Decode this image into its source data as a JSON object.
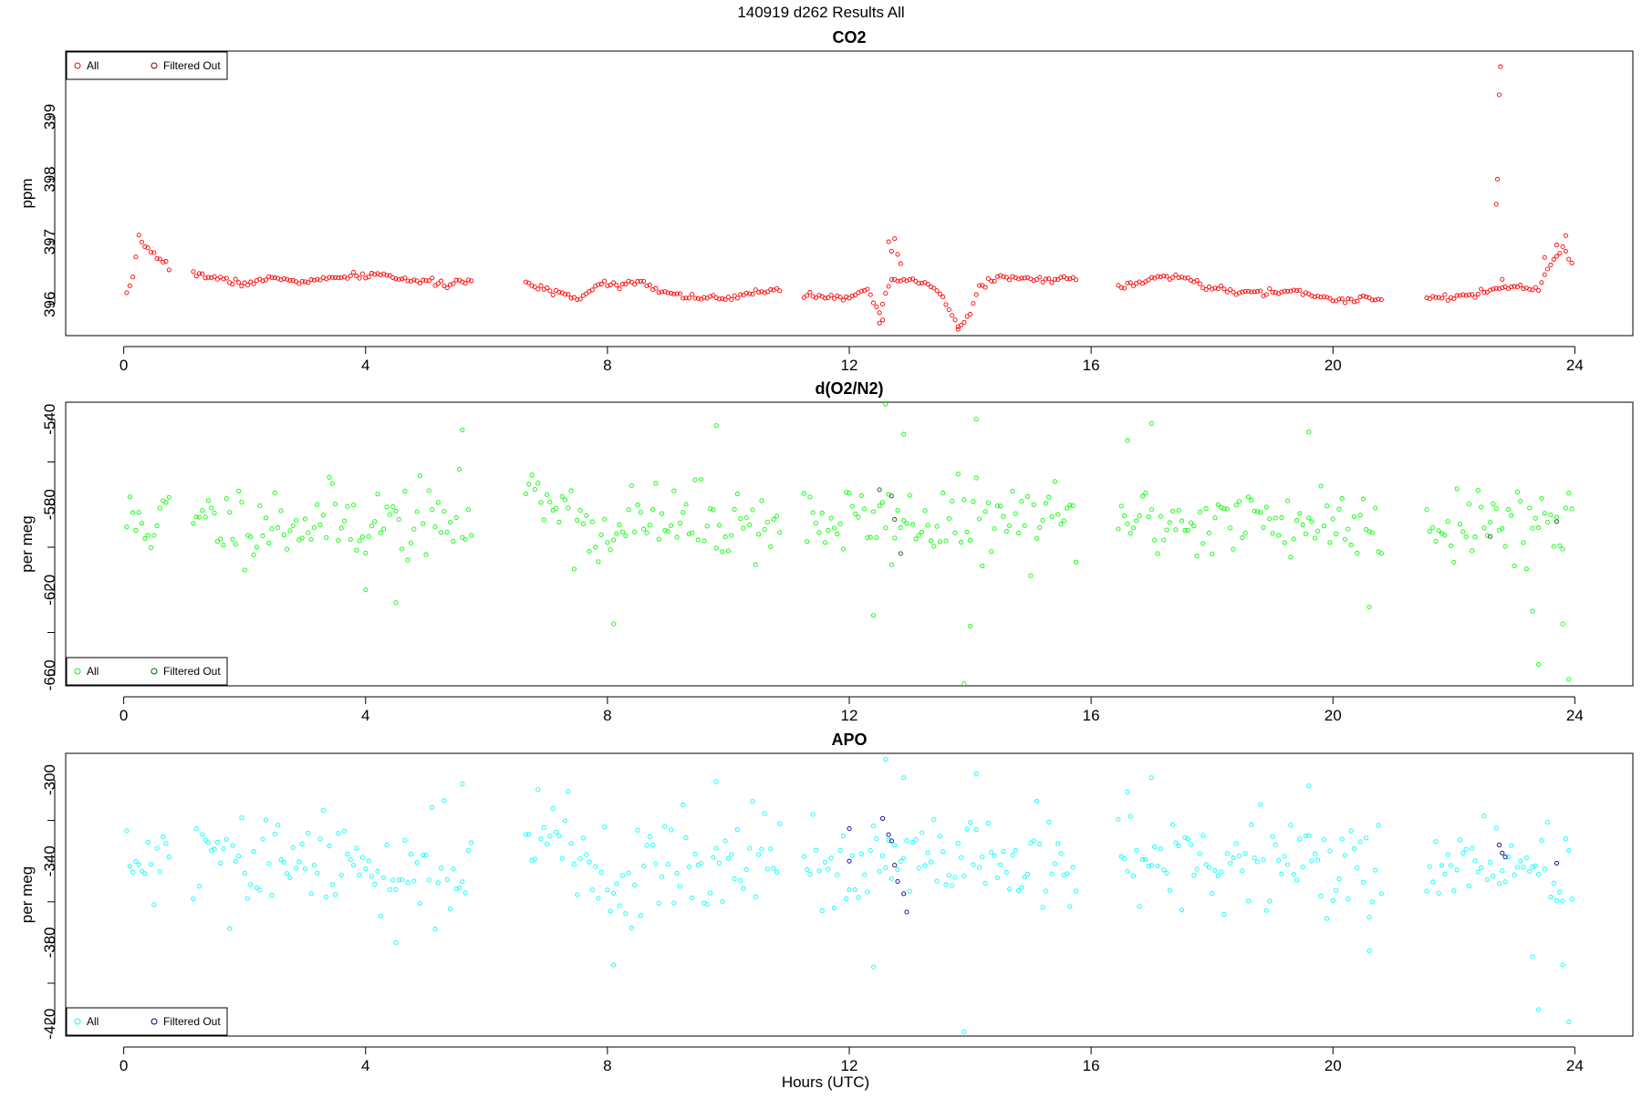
{
  "figure": {
    "title": "140919   d262   Results All",
    "xlabel": "Hours (UTC)"
  },
  "chart_data": [
    {
      "type": "scatter",
      "title": "CO2",
      "ylabel": "ppm",
      "xlim": [
        -0.96,
        24.96
      ],
      "ylim": [
        395.5,
        400.05
      ],
      "x_ticks": [
        0,
        4,
        8,
        12,
        16,
        20,
        24
      ],
      "y_ticks": [
        396,
        397,
        398,
        399
      ],
      "legend_position": "top-left",
      "series": [
        {
          "name": "All",
          "color": "#ff0000",
          "profile": [
            [
              0.05,
              396.15
            ],
            [
              0.15,
              396.4
            ],
            [
              0.25,
              397.05
            ],
            [
              0.45,
              396.85
            ],
            [
              0.75,
              396.6
            ],
            [
              1.15,
              396.5
            ],
            [
              1.6,
              396.4
            ],
            [
              2.0,
              396.33
            ],
            [
              2.5,
              396.42
            ],
            [
              3.0,
              396.36
            ],
            [
              3.5,
              396.42
            ],
            [
              4.2,
              396.48
            ],
            [
              4.8,
              396.38
            ],
            [
              5.3,
              396.32
            ],
            [
              5.75,
              396.38
            ],
            [
              6.7,
              396.3
            ],
            [
              7.2,
              396.2
            ],
            [
              7.5,
              396.08
            ],
            [
              7.9,
              396.35
            ],
            [
              8.2,
              396.3
            ],
            [
              8.5,
              396.4
            ],
            [
              8.9,
              396.2
            ],
            [
              9.4,
              396.12
            ],
            [
              10.0,
              396.08
            ],
            [
              10.6,
              396.22
            ],
            [
              10.8,
              396.25
            ],
            [
              11.3,
              396.15
            ],
            [
              11.9,
              396.12
            ],
            [
              12.3,
              396.2
            ],
            [
              12.5,
              395.85
            ],
            [
              12.7,
              396.4
            ],
            [
              13.2,
              396.35
            ],
            [
              13.5,
              396.2
            ],
            [
              13.8,
              395.62
            ],
            [
              14.0,
              395.85
            ],
            [
              14.15,
              396.3
            ],
            [
              14.5,
              396.45
            ],
            [
              15.0,
              396.38
            ],
            [
              15.4,
              396.42
            ],
            [
              15.75,
              396.4
            ],
            [
              16.5,
              396.28
            ],
            [
              17.0,
              396.4
            ],
            [
              17.5,
              396.45
            ],
            [
              17.9,
              396.28
            ],
            [
              18.3,
              396.2
            ],
            [
              18.8,
              396.18
            ],
            [
              19.3,
              396.22
            ],
            [
              19.8,
              396.12
            ],
            [
              20.2,
              396.05
            ],
            [
              20.5,
              396.12
            ],
            [
              20.8,
              396.08
            ],
            [
              21.6,
              396.12
            ],
            [
              22.0,
              396.12
            ],
            [
              22.4,
              396.15
            ],
            [
              22.7,
              396.25
            ],
            [
              23.1,
              396.28
            ],
            [
              23.4,
              396.22
            ],
            [
              23.6,
              396.65
            ],
            [
              23.8,
              396.9
            ],
            [
              23.95,
              396.65
            ]
          ],
          "gaps": [
            [
              0.8,
              1.1
            ],
            [
              5.8,
              6.6
            ],
            [
              10.9,
              11.2
            ],
            [
              15.8,
              16.4
            ],
            [
              20.85,
              21.5
            ]
          ],
          "spread": 0.05,
          "outliers": [
            [
              12.5,
              395.7
            ],
            [
              12.55,
              395.75
            ],
            [
              12.65,
              397.0
            ],
            [
              12.7,
              396.85
            ],
            [
              12.75,
              397.05
            ],
            [
              12.8,
              396.8
            ],
            [
              12.85,
              396.65
            ],
            [
              13.8,
              395.6
            ],
            [
              22.7,
              397.6
            ],
            [
              22.72,
              398.0
            ],
            [
              22.75,
              399.35
            ],
            [
              22.77,
              399.8
            ],
            [
              22.8,
              396.4
            ],
            [
              23.5,
              396.75
            ],
            [
              23.7,
              396.95
            ],
            [
              23.85,
              397.1
            ]
          ]
        },
        {
          "name": "Filtered Out",
          "color": "#8b0000",
          "points": []
        }
      ]
    },
    {
      "type": "scatter",
      "title": "d(O2/N2)",
      "ylabel": "per meg",
      "xlim": [
        -0.96,
        24.96
      ],
      "ylim": [
        -665,
        -532
      ],
      "x_ticks": [
        0,
        4,
        8,
        12,
        16,
        20,
        24
      ],
      "y_ticks": [
        -540,
        -560,
        -580,
        -600,
        -620,
        -640,
        -660
      ],
      "y_tick_labels": [
        "-540",
        "",
        "-580",
        "",
        "-620",
        "",
        "-660"
      ],
      "legend_position": "bottom-left",
      "series": [
        {
          "name": "All",
          "color": "#00ff00",
          "center": -588,
          "spread": 9,
          "seed": 11,
          "extremes": [
            [
              4.0,
              -620
            ],
            [
              4.5,
              -626
            ],
            [
              5.6,
              -545
            ],
            [
              8.1,
              -636
            ],
            [
              9.8,
              -543
            ],
            [
              12.4,
              -632
            ],
            [
              12.6,
              -533
            ],
            [
              12.9,
              -547
            ],
            [
              13.9,
              -664
            ],
            [
              14.0,
              -637
            ],
            [
              14.1,
              -540
            ],
            [
              16.6,
              -550
            ],
            [
              17.0,
              -542
            ],
            [
              19.6,
              -546
            ],
            [
              20.6,
              -628
            ],
            [
              23.3,
              -630
            ],
            [
              23.4,
              -655
            ],
            [
              23.8,
              -636
            ],
            [
              23.9,
              -662
            ]
          ]
        },
        {
          "name": "Filtered Out",
          "color": "#006400",
          "points": [
            [
              12.5,
              -573
            ],
            [
              12.7,
              -576
            ],
            [
              12.75,
              -587
            ],
            [
              12.85,
              -603
            ],
            [
              22.6,
              -595
            ],
            [
              23.7,
              -588
            ]
          ]
        }
      ]
    },
    {
      "type": "scatter",
      "title": "APO",
      "ylabel": "per meg",
      "xlim": [
        -0.96,
        24.96
      ],
      "ylim": [
        -426,
        -287
      ],
      "x_ticks": [
        0,
        4,
        8,
        12,
        16,
        20,
        24
      ],
      "y_ticks": [
        -300,
        -320,
        -340,
        -360,
        -380,
        -400,
        -420
      ],
      "y_tick_labels": [
        "-300",
        "",
        "-340",
        "",
        "-380",
        "",
        "-420"
      ],
      "legend_position": "bottom-left",
      "series": [
        {
          "name": "All",
          "color": "#00ffff",
          "center": -342,
          "spread": 12,
          "seed": 29,
          "extremes": [
            [
              4.5,
              -380
            ],
            [
              5.6,
              -302
            ],
            [
              8.1,
              -391
            ],
            [
              9.8,
              -301
            ],
            [
              12.4,
              -392
            ],
            [
              12.6,
              -290
            ],
            [
              12.9,
              -299
            ],
            [
              13.9,
              -424
            ],
            [
              14.1,
              -297
            ],
            [
              16.6,
              -306
            ],
            [
              17.0,
              -299
            ],
            [
              19.6,
              -303
            ],
            [
              20.6,
              -384
            ],
            [
              23.3,
              -387
            ],
            [
              23.4,
              -413
            ],
            [
              23.8,
              -391
            ],
            [
              23.9,
              -419
            ]
          ]
        },
        {
          "name": "Filtered Out",
          "color": "#00008b",
          "points": [
            [
              12.0,
              -324
            ],
            [
              12.0,
              -340
            ],
            [
              12.55,
              -319
            ],
            [
              12.65,
              -327
            ],
            [
              12.7,
              -330
            ],
            [
              12.75,
              -342
            ],
            [
              12.8,
              -350
            ],
            [
              12.9,
              -356
            ],
            [
              12.95,
              -365
            ],
            [
              22.75,
              -332
            ],
            [
              22.8,
              -336
            ],
            [
              22.85,
              -338
            ],
            [
              23.7,
              -341
            ]
          ]
        }
      ]
    }
  ]
}
